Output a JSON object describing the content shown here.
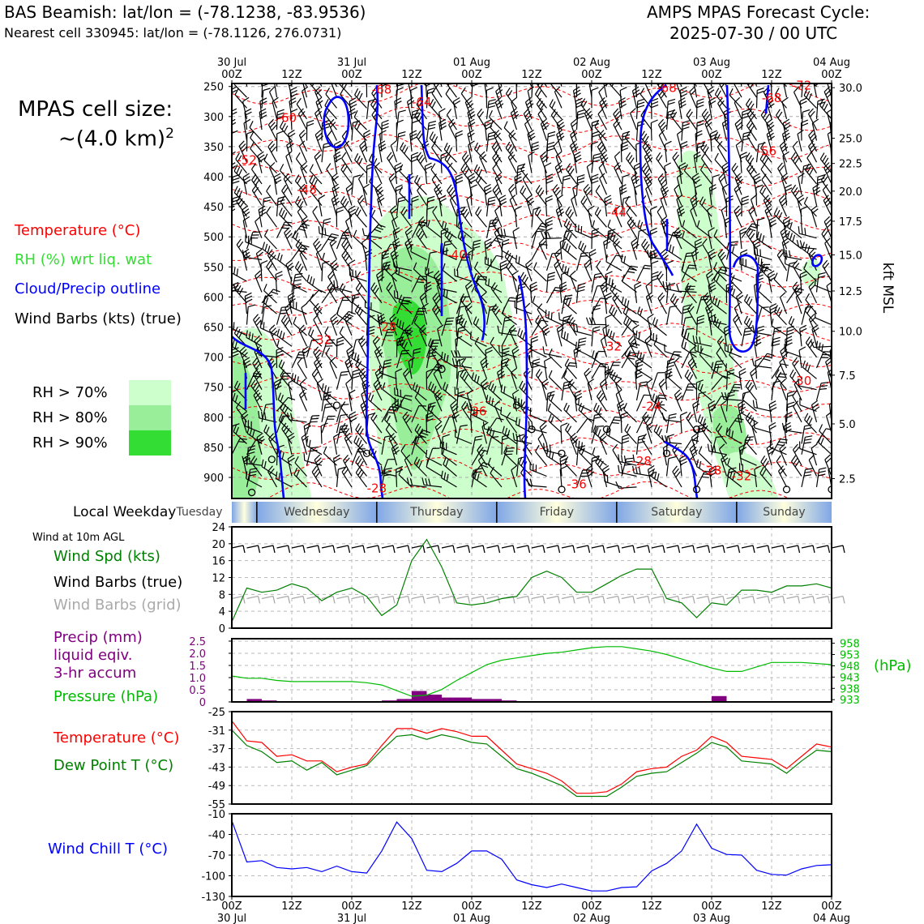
{
  "header": {
    "station_line": "BAS Beamish: lat/lon = (-78.1238, -83.9536)",
    "cell_line": "Nearest cell 330945: lat/lon = (-78.1126, 276.0731)",
    "cycle_line1": "AMPS MPAS Forecast Cycle:",
    "cycle_line2": "2025-07-30 / 00 UTC"
  },
  "cell_size": {
    "line1": "MPAS cell size:",
    "line2": "~(4.0 km)",
    "sup": "2"
  },
  "legend": {
    "temperature": "Temperature (°C)",
    "rh": "RH (%) wrt liq. wat",
    "cloud": "Cloud/Precip outline",
    "wind": "Wind Barbs (kts) (true)",
    "rh70": "RH > 70%",
    "rh80": "RH > 80%",
    "rh90": "RH > 90%"
  },
  "colors": {
    "temperature": "#ff0000",
    "rh_label": "#33dd33",
    "cloud": "#0000ff",
    "rh70": "#ccffcc",
    "rh80": "#99ee99",
    "rh90": "#33dd33",
    "wind_speed": "#008000",
    "precip": "#800080",
    "pressure": "#00bb00",
    "dewpoint": "#008000",
    "windchill": "#0000ff",
    "grid_barbs": "#aaaaaa"
  },
  "time_axis": {
    "top_labels": [
      {
        "hour": 0,
        "line1": "30 Jul",
        "line2": "00Z"
      },
      {
        "hour": 12,
        "line1": "",
        "line2": "12Z"
      },
      {
        "hour": 24,
        "line1": "31 Jul",
        "line2": "00Z"
      },
      {
        "hour": 36,
        "line1": "",
        "line2": "12Z"
      },
      {
        "hour": 48,
        "line1": "01 Aug",
        "line2": "00Z"
      },
      {
        "hour": 60,
        "line1": "",
        "line2": "12Z"
      },
      {
        "hour": 72,
        "line1": "02 Aug",
        "line2": "00Z"
      },
      {
        "hour": 84,
        "line1": "",
        "line2": "12Z"
      },
      {
        "hour": 96,
        "line1": "03 Aug",
        "line2": "00Z"
      },
      {
        "hour": 108,
        "line1": "",
        "line2": "12Z"
      },
      {
        "hour": 120,
        "line1": "04 Aug",
        "line2": "00Z"
      }
    ]
  },
  "weekday_bar": {
    "label": "Local Weekday",
    "days": [
      {
        "name": "Tuesday",
        "start": -8,
        "end": 5
      },
      {
        "name": "Wednesday",
        "start": 5,
        "end": 29
      },
      {
        "name": "Thursday",
        "start": 29,
        "end": 53
      },
      {
        "name": "Friday",
        "start": 53,
        "end": 77
      },
      {
        "name": "Saturday",
        "start": 77,
        "end": 101
      },
      {
        "name": "Sunday",
        "start": 101,
        "end": 125
      }
    ]
  },
  "chart_data": [
    {
      "type": "heatmap",
      "name": "profile",
      "y_pressure_ticks": [
        250,
        300,
        350,
        400,
        450,
        500,
        550,
        600,
        650,
        700,
        750,
        800,
        850,
        900
      ],
      "ylim_hpa": [
        245,
        935
      ],
      "y_right_label": "kft MSL",
      "y_right_ticks": [
        {
          "kft": "30.0",
          "hpa": 252
        },
        {
          "kft": "25.0",
          "hpa": 336
        },
        {
          "kft": "22.5",
          "hpa": 378
        },
        {
          "kft": "20.0",
          "hpa": 424
        },
        {
          "kft": "17.5",
          "hpa": 474
        },
        {
          "kft": "15.0",
          "hpa": 530
        },
        {
          "kft": "12.5",
          "hpa": 590
        },
        {
          "kft": "10.0",
          "hpa": 657
        },
        {
          "kft": "7.5",
          "hpa": 730
        },
        {
          "kft": "5.0",
          "hpa": 811
        },
        {
          "kft": "2.5",
          "hpa": 902
        }
      ],
      "temperature_labels": [
        {
          "text": "-68",
          "hour": 30,
          "hpa": 262
        },
        {
          "text": "-64",
          "hour": 38,
          "hpa": 283
        },
        {
          "text": "-60",
          "hour": 11,
          "hpa": 309
        },
        {
          "text": "-52",
          "hour": 3,
          "hpa": 379
        },
        {
          "text": "-48",
          "hour": 15,
          "hpa": 428
        },
        {
          "text": "-44",
          "hour": 77,
          "hpa": 466
        },
        {
          "text": "-40",
          "hour": 45,
          "hpa": 537
        },
        {
          "text": "-32",
          "hour": 18,
          "hpa": 678
        },
        {
          "text": "-28",
          "hour": 31,
          "hpa": 657
        },
        {
          "text": "-32",
          "hour": 76,
          "hpa": 689
        },
        {
          "text": "-36",
          "hour": 49,
          "hpa": 797
        },
        {
          "text": "-24",
          "hour": 84,
          "hpa": 789
        },
        {
          "text": "-28",
          "hour": 82,
          "hpa": 880
        },
        {
          "text": "-28",
          "hour": 29,
          "hpa": 925
        },
        {
          "text": "-36",
          "hour": 69,
          "hpa": 918
        },
        {
          "text": "-28",
          "hour": 96,
          "hpa": 895
        },
        {
          "text": "-32",
          "hour": 102,
          "hpa": 905
        },
        {
          "text": "-30",
          "hour": 114,
          "hpa": 746
        },
        {
          "text": "-68",
          "hour": 87,
          "hpa": 259
        },
        {
          "text": "-68",
          "hour": 108,
          "hpa": 276
        },
        {
          "text": "-72",
          "hour": 114,
          "hpa": 255
        },
        {
          "text": "-56",
          "hour": 107,
          "hpa": 364
        }
      ],
      "station_calm_markers": [
        {
          "hour": 8,
          "hpa": 870
        },
        {
          "hour": 4,
          "hpa": 925
        },
        {
          "hour": 21,
          "hpa": 780
        },
        {
          "hour": 27,
          "hpa": 860
        },
        {
          "hour": 42,
          "hpa": 720
        },
        {
          "hour": 57,
          "hpa": 780
        },
        {
          "hour": 60,
          "hpa": 820
        },
        {
          "hour": 66,
          "hpa": 860
        },
        {
          "hour": 66,
          "hpa": 920
        },
        {
          "hour": 75,
          "hpa": 820
        },
        {
          "hour": 87,
          "hpa": 860
        },
        {
          "hour": 93,
          "hpa": 820
        },
        {
          "hour": 111,
          "hpa": 920
        },
        {
          "hour": 120,
          "hpa": 920
        },
        {
          "hour": 93,
          "hpa": 920
        }
      ]
    },
    {
      "type": "line",
      "name": "surface-wind",
      "title": "Wind at 10m AGL",
      "legend": [
        "Wind Spd (kts)",
        "Wind Barbs (true)",
        "Wind Barbs (grid)"
      ],
      "ylim": [
        0,
        24
      ],
      "yticks": [
        0,
        4,
        8,
        12,
        16,
        20,
        24
      ],
      "x": [
        0,
        3,
        6,
        9,
        12,
        15,
        18,
        21,
        24,
        27,
        30,
        33,
        36,
        39,
        42,
        45,
        48,
        51,
        54,
        57,
        60,
        63,
        66,
        69,
        72,
        75,
        78,
        81,
        84,
        87,
        90,
        93,
        96,
        99,
        102,
        105,
        108,
        111,
        114,
        117,
        120
      ],
      "series": [
        {
          "name": "Wind Spd (kts)",
          "values": [
            1.5,
            9.5,
            8.5,
            9,
            10.5,
            9.5,
            6.5,
            8.5,
            9.5,
            7.5,
            3,
            5.5,
            16,
            21,
            14.5,
            6,
            5.5,
            6,
            7,
            7.5,
            12,
            13.5,
            12,
            8.5,
            8.5,
            10.5,
            12.5,
            14,
            14,
            7,
            6,
            2.5,
            6,
            5.5,
            9,
            9,
            8.5,
            10,
            10,
            10.5,
            9.5
          ]
        }
      ]
    },
    {
      "type": "line",
      "name": "precip-pressure",
      "legend": [
        "Precip (mm)",
        "liquid eqiv.",
        "3-hr accum",
        "Pressure (hPa)"
      ],
      "y_left_ticks": [
        "0",
        "0.5",
        "1.0",
        "1.5",
        "2.0",
        "2.5"
      ],
      "ylim_left": [
        0,
        2.6
      ],
      "y_right_ticks": [
        "933",
        "938",
        "943",
        "948",
        "953",
        "958"
      ],
      "ylim_right": [
        932,
        960
      ],
      "y_right_label": "(hPa)",
      "x": [
        0,
        3,
        6,
        9,
        12,
        15,
        18,
        21,
        24,
        27,
        30,
        33,
        36,
        39,
        42,
        45,
        48,
        51,
        54,
        57,
        60,
        63,
        66,
        69,
        72,
        75,
        78,
        81,
        84,
        87,
        90,
        93,
        96,
        99,
        102,
        105,
        108,
        111,
        114,
        117,
        120
      ],
      "series": [
        {
          "name": "Pressure (hPa)",
          "values": [
            943.5,
            942.5,
            942.5,
            941.5,
            941,
            941,
            941,
            941,
            941,
            940.5,
            939.5,
            937,
            934.5,
            935,
            937.5,
            941.5,
            945,
            948.5,
            950.5,
            951.5,
            952.5,
            953.5,
            954,
            955,
            956,
            956.5,
            956.5,
            955.5,
            954.5,
            953,
            951,
            949,
            947,
            945.5,
            945.5,
            947.5,
            949.5,
            949.5,
            949.5,
            949,
            948.5
          ]
        },
        {
          "name": "Precip (mm)",
          "values": [
            0,
            0.12,
            0.06,
            0,
            0,
            0,
            0,
            0,
            0,
            0,
            0.06,
            0.12,
            0.45,
            0.3,
            0.18,
            0.18,
            0.12,
            0.12,
            0.06,
            0,
            0,
            0,
            0,
            0,
            0,
            0,
            0,
            0,
            0,
            0,
            0,
            0,
            0.24,
            0,
            0,
            0,
            0,
            0,
            0,
            0,
            0
          ]
        }
      ]
    },
    {
      "type": "line",
      "name": "temperature-dewpoint",
      "legend": [
        "Temperature (°C)",
        "Dew Point T (°C)"
      ],
      "ylim": [
        -55,
        -25
      ],
      "yticks": [
        -25,
        -31,
        -37,
        -43,
        -49,
        -55
      ],
      "x": [
        0,
        3,
        6,
        9,
        12,
        15,
        18,
        21,
        24,
        27,
        30,
        33,
        36,
        39,
        42,
        45,
        48,
        51,
        54,
        57,
        60,
        63,
        66,
        69,
        72,
        75,
        78,
        81,
        84,
        87,
        90,
        93,
        96,
        99,
        102,
        105,
        108,
        111,
        114,
        117,
        120
      ],
      "series": [
        {
          "name": "Temperature (°C)",
          "values": [
            -28,
            -34.5,
            -35,
            -39.5,
            -39,
            -41,
            -41,
            -44.5,
            -43,
            -42,
            -36,
            -30.5,
            -30.5,
            -32,
            -30.5,
            -31.5,
            -33,
            -33,
            -37.5,
            -42,
            -43.5,
            -45,
            -47.5,
            -51.5,
            -51.5,
            -51,
            -48.5,
            -44.5,
            -43.5,
            -43,
            -39.5,
            -37.5,
            -33,
            -35,
            -39.5,
            -40,
            -40.5,
            -43.5,
            -39.5,
            -35.5,
            -36.5
          ]
        },
        {
          "name": "Dew Point T (°C)",
          "values": [
            -31,
            -36,
            -38,
            -41.5,
            -41,
            -44,
            -41.5,
            -45.5,
            -44,
            -42.5,
            -37.5,
            -33,
            -32.5,
            -34,
            -32.5,
            -33.5,
            -35,
            -35.5,
            -39.5,
            -43.5,
            -45,
            -47,
            -49,
            -52.5,
            -52.5,
            -52.5,
            -49.5,
            -46,
            -45,
            -44.5,
            -41.5,
            -38.5,
            -35,
            -36.5,
            -41,
            -41.5,
            -42,
            -45,
            -41,
            -37.5,
            -38
          ]
        }
      ]
    },
    {
      "type": "line",
      "name": "wind-chill",
      "legend": [
        "Wind Chill T (°C)"
      ],
      "ylim": [
        -130,
        -10
      ],
      "yticks": [
        -10,
        -40,
        -70,
        -100,
        -130
      ],
      "x": [
        0,
        3,
        6,
        9,
        12,
        15,
        18,
        21,
        24,
        27,
        30,
        33,
        36,
        39,
        42,
        45,
        48,
        51,
        54,
        57,
        60,
        63,
        66,
        69,
        72,
        75,
        78,
        81,
        84,
        87,
        90,
        93,
        96,
        99,
        102,
        105,
        108,
        111,
        114,
        117,
        120
      ],
      "series": [
        {
          "name": "Wind Chill T (°C)",
          "values": [
            -20,
            -80,
            -78,
            -88,
            -90,
            -88,
            -94,
            -86,
            -94,
            -96,
            -64,
            -22,
            -46,
            -92,
            -94,
            -82,
            -64,
            -64,
            -76,
            -106,
            -113,
            -117,
            -112,
            -117,
            -122,
            -122,
            -117,
            -116,
            -93,
            -82,
            -64,
            -25,
            -60,
            -69,
            -70,
            -92,
            -98,
            -99,
            -90,
            -85,
            -84
          ]
        }
      ]
    }
  ]
}
